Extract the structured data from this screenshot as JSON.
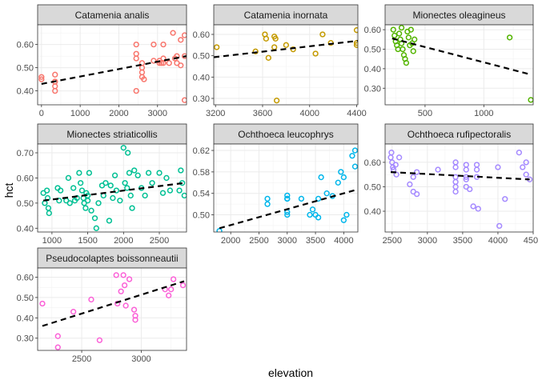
{
  "chart_data": {
    "type": "scatter",
    "xlabel": "elevation",
    "ylabel": "hct",
    "trendline": "linear, dashed black",
    "grid": true,
    "panels": [
      {
        "species": "Catamenia analis",
        "color": "#F8766D",
        "xlim": [
          -100,
          3750
        ],
        "ylim": [
          0.34,
          0.685
        ],
        "xticks": [
          0,
          1000,
          2000,
          3000
        ],
        "yticks": [
          0.4,
          0.5,
          0.6
        ],
        "trend": [
          [
            0,
            0.43
          ],
          [
            3750,
            0.55
          ]
        ],
        "points": [
          [
            0,
            0.46
          ],
          [
            0,
            0.45
          ],
          [
            350,
            0.47
          ],
          [
            350,
            0.44
          ],
          [
            350,
            0.44
          ],
          [
            350,
            0.42
          ],
          [
            350,
            0.4
          ],
          [
            2450,
            0.6
          ],
          [
            2450,
            0.56
          ],
          [
            2450,
            0.54
          ],
          [
            2450,
            0.4
          ],
          [
            2600,
            0.52
          ],
          [
            2600,
            0.5
          ],
          [
            2600,
            0.48
          ],
          [
            2600,
            0.46
          ],
          [
            2650,
            0.45
          ],
          [
            2900,
            0.6
          ],
          [
            2900,
            0.53
          ],
          [
            3050,
            0.53
          ],
          [
            3050,
            0.52
          ],
          [
            3100,
            0.52
          ],
          [
            3150,
            0.6
          ],
          [
            3150,
            0.54
          ],
          [
            3150,
            0.52
          ],
          [
            3300,
            0.52
          ],
          [
            3400,
            0.65
          ],
          [
            3450,
            0.54
          ],
          [
            3500,
            0.55
          ],
          [
            3500,
            0.52
          ],
          [
            3600,
            0.62
          ],
          [
            3600,
            0.51
          ],
          [
            3700,
            0.64
          ],
          [
            3700,
            0.55
          ],
          [
            3700,
            0.36
          ]
        ]
      },
      {
        "species": "Catamenia inornata",
        "color": "#C49A00",
        "xlim": [
          3185,
          4410
        ],
        "ylim": [
          0.27,
          0.645
        ],
        "xticks": [
          3200,
          3600,
          4000,
          4400
        ],
        "yticks": [
          0.3,
          0.4,
          0.5,
          0.6
        ],
        "trend": [
          [
            3185,
            0.493
          ],
          [
            4410,
            0.57
          ]
        ],
        "points": [
          [
            3210,
            0.54
          ],
          [
            3540,
            0.52
          ],
          [
            3620,
            0.6
          ],
          [
            3630,
            0.58
          ],
          [
            3650,
            0.49
          ],
          [
            3700,
            0.59
          ],
          [
            3710,
            0.58
          ],
          [
            3700,
            0.54
          ],
          [
            3720,
            0.29
          ],
          [
            3800,
            0.55
          ],
          [
            3860,
            0.53
          ],
          [
            4050,
            0.51
          ],
          [
            4110,
            0.6
          ],
          [
            4180,
            0.56
          ],
          [
            4400,
            0.62
          ],
          [
            4400,
            0.56
          ],
          [
            4400,
            0.55
          ]
        ]
      },
      {
        "species": "Mionectes oleagineus",
        "color": "#53B400",
        "xlim": [
          160,
          1420
        ],
        "ylim": [
          0.215,
          0.625
        ],
        "xticks": [
          500,
          1000
        ],
        "yticks": [
          0.3,
          0.4,
          0.5,
          0.6
        ],
        "trend": [
          [
            220,
            0.555
          ],
          [
            1400,
            0.37
          ]
        ],
        "points": [
          [
            230,
            0.6
          ],
          [
            240,
            0.57
          ],
          [
            250,
            0.54
          ],
          [
            260,
            0.52
          ],
          [
            270,
            0.5
          ],
          [
            280,
            0.58
          ],
          [
            290,
            0.55
          ],
          [
            300,
            0.61
          ],
          [
            300,
            0.53
          ],
          [
            310,
            0.5
          ],
          [
            320,
            0.47
          ],
          [
            330,
            0.45
          ],
          [
            340,
            0.43
          ],
          [
            350,
            0.59
          ],
          [
            360,
            0.56
          ],
          [
            370,
            0.52
          ],
          [
            380,
            0.6
          ],
          [
            390,
            0.53
          ],
          [
            400,
            0.49
          ],
          [
            410,
            0.55
          ],
          [
            1220,
            0.56
          ],
          [
            1400,
            0.24
          ]
        ]
      },
      {
        "species": "Mionectes striaticollis",
        "color": "#00C094",
        "xlim": [
          800,
          2880
        ],
        "ylim": [
          0.385,
          0.735
        ],
        "xticks": [
          1000,
          1500,
          2000,
          2500
        ],
        "yticks": [
          0.4,
          0.5,
          0.6,
          0.7
        ],
        "trend": [
          [
            880,
            0.51
          ],
          [
            2850,
            0.58
          ]
        ],
        "points": [
          [
            880,
            0.54
          ],
          [
            900,
            0.5
          ],
          [
            930,
            0.55
          ],
          [
            940,
            0.52
          ],
          [
            950,
            0.48
          ],
          [
            960,
            0.46
          ],
          [
            1080,
            0.56
          ],
          [
            1100,
            0.51
          ],
          [
            1120,
            0.55
          ],
          [
            1200,
            0.51
          ],
          [
            1230,
            0.6
          ],
          [
            1250,
            0.5
          ],
          [
            1300,
            0.56
          ],
          [
            1320,
            0.51
          ],
          [
            1350,
            0.52
          ],
          [
            1380,
            0.62
          ],
          [
            1400,
            0.58
          ],
          [
            1420,
            0.55
          ],
          [
            1440,
            0.52
          ],
          [
            1450,
            0.5
          ],
          [
            1470,
            0.48
          ],
          [
            1480,
            0.54
          ],
          [
            1500,
            0.53
          ],
          [
            1500,
            0.51
          ],
          [
            1520,
            0.62
          ],
          [
            1550,
            0.47
          ],
          [
            1600,
            0.44
          ],
          [
            1620,
            0.4
          ],
          [
            1650,
            0.5
          ],
          [
            1700,
            0.57
          ],
          [
            1720,
            0.53
          ],
          [
            1750,
            0.58
          ],
          [
            1800,
            0.43
          ],
          [
            1820,
            0.57
          ],
          [
            1850,
            0.52
          ],
          [
            1880,
            0.61
          ],
          [
            1900,
            0.55
          ],
          [
            1950,
            0.51
          ],
          [
            2000,
            0.72
          ],
          [
            2020,
            0.58
          ],
          [
            2050,
            0.56
          ],
          [
            2060,
            0.7
          ],
          [
            2080,
            0.62
          ],
          [
            2100,
            0.53
          ],
          [
            2120,
            0.48
          ],
          [
            2150,
            0.63
          ],
          [
            2200,
            0.61
          ],
          [
            2250,
            0.56
          ],
          [
            2300,
            0.53
          ],
          [
            2350,
            0.62
          ],
          [
            2400,
            0.58
          ],
          [
            2500,
            0.62
          ],
          [
            2550,
            0.54
          ],
          [
            2600,
            0.6
          ],
          [
            2650,
            0.55
          ],
          [
            2780,
            0.55
          ],
          [
            2800,
            0.63
          ],
          [
            2820,
            0.58
          ],
          [
            2850,
            0.53
          ]
        ]
      },
      {
        "species": "Ochthoeca leucophrys",
        "color": "#00B6EB",
        "xlim": [
          1700,
          4250
        ],
        "ylim": [
          0.468,
          0.632
        ],
        "xticks": [
          2000,
          2500,
          3000,
          3500,
          4000
        ],
        "yticks": [
          0.5,
          0.54,
          0.58,
          0.62
        ],
        "trend": [
          [
            1800,
            0.475
          ],
          [
            4200,
            0.546
          ]
        ],
        "points": [
          [
            1800,
            0.47
          ],
          [
            2650,
            0.53
          ],
          [
            2650,
            0.52
          ],
          [
            3000,
            0.53
          ],
          [
            3000,
            0.536
          ],
          [
            3000,
            0.53
          ],
          [
            3000,
            0.5
          ],
          [
            3000,
            0.505
          ],
          [
            3250,
            0.53
          ],
          [
            3400,
            0.5
          ],
          [
            3450,
            0.51
          ],
          [
            3500,
            0.5
          ],
          [
            3550,
            0.53
          ],
          [
            3550,
            0.495
          ],
          [
            3600,
            0.57
          ],
          [
            3700,
            0.54
          ],
          [
            3800,
            0.535
          ],
          [
            3900,
            0.56
          ],
          [
            3950,
            0.58
          ],
          [
            4000,
            0.57
          ],
          [
            4000,
            0.49
          ],
          [
            4050,
            0.5
          ],
          [
            4150,
            0.61
          ],
          [
            4200,
            0.62
          ],
          [
            4200,
            0.59
          ]
        ]
      },
      {
        "species": "Ochthoeca rufipectoralis",
        "color": "#A58AFF",
        "xlim": [
          2400,
          4500
        ],
        "ylim": [
          0.315,
          0.675
        ],
        "xticks": [
          2500,
          3000,
          3500,
          4000,
          4500
        ],
        "yticks": [
          0.4,
          0.5,
          0.6
        ],
        "trend": [
          [
            2480,
            0.56
          ],
          [
            4450,
            0.53
          ]
        ],
        "points": [
          [
            2480,
            0.62
          ],
          [
            2490,
            0.64
          ],
          [
            2500,
            0.6
          ],
          [
            2510,
            0.58
          ],
          [
            2520,
            0.57
          ],
          [
            2550,
            0.59
          ],
          [
            2560,
            0.55
          ],
          [
            2600,
            0.62
          ],
          [
            2750,
            0.51
          ],
          [
            2800,
            0.54
          ],
          [
            2800,
            0.48
          ],
          [
            2850,
            0.56
          ],
          [
            2850,
            0.47
          ],
          [
            3150,
            0.57
          ],
          [
            3400,
            0.6
          ],
          [
            3400,
            0.58
          ],
          [
            3400,
            0.54
          ],
          [
            3400,
            0.52
          ],
          [
            3400,
            0.5
          ],
          [
            3400,
            0.48
          ],
          [
            3550,
            0.59
          ],
          [
            3550,
            0.57
          ],
          [
            3550,
            0.54
          ],
          [
            3550,
            0.53
          ],
          [
            3550,
            0.5
          ],
          [
            3600,
            0.49
          ],
          [
            3650,
            0.42
          ],
          [
            3700,
            0.59
          ],
          [
            3700,
            0.57
          ],
          [
            3700,
            0.54
          ],
          [
            3720,
            0.41
          ],
          [
            4000,
            0.58
          ],
          [
            4020,
            0.34
          ],
          [
            4100,
            0.45
          ],
          [
            4300,
            0.64
          ],
          [
            4350,
            0.58
          ],
          [
            4400,
            0.6
          ],
          [
            4400,
            0.55
          ],
          [
            4450,
            0.53
          ]
        ]
      },
      {
        "species": "Pseudocolaptes boissonneautii",
        "color": "#FB61D7",
        "xlim": [
          2130,
          3380
        ],
        "ylim": [
          0.24,
          0.645
        ],
        "xticks": [
          2500,
          3000
        ],
        "yticks": [
          0.3,
          0.4,
          0.5,
          0.6
        ],
        "trend": [
          [
            2170,
            0.36
          ],
          [
            3360,
            0.58
          ]
        ],
        "points": [
          [
            2170,
            0.47
          ],
          [
            2300,
            0.31
          ],
          [
            2300,
            0.255
          ],
          [
            2430,
            0.43
          ],
          [
            2580,
            0.49
          ],
          [
            2650,
            0.29
          ],
          [
            2790,
            0.61
          ],
          [
            2800,
            0.47
          ],
          [
            2830,
            0.53
          ],
          [
            2850,
            0.61
          ],
          [
            2860,
            0.56
          ],
          [
            2870,
            0.46
          ],
          [
            2900,
            0.59
          ],
          [
            2940,
            0.44
          ],
          [
            2950,
            0.41
          ],
          [
            2950,
            0.39
          ],
          [
            3200,
            0.54
          ],
          [
            3230,
            0.51
          ],
          [
            3250,
            0.54
          ],
          [
            3270,
            0.59
          ],
          [
            3350,
            0.56
          ]
        ]
      }
    ]
  }
}
